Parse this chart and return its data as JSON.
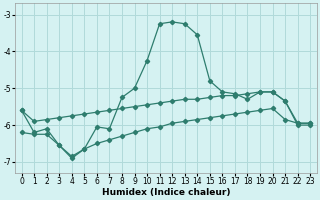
{
  "line1_x": [
    0,
    1,
    2,
    3,
    4,
    5,
    6,
    7,
    8,
    9,
    10,
    11,
    12,
    13,
    14,
    15,
    16,
    17,
    18,
    19,
    20,
    21,
    22,
    23
  ],
  "line1_y": [
    -5.6,
    -6.2,
    -6.1,
    -6.55,
    -6.9,
    -6.65,
    -6.05,
    -6.1,
    -5.25,
    -5.0,
    -4.25,
    -3.25,
    -3.2,
    -3.25,
    -3.55,
    -4.8,
    -5.1,
    -5.15,
    -5.3,
    -5.1,
    -5.1,
    -5.35,
    -6.0,
    -6.0
  ],
  "line2_x": [
    0,
    1,
    2,
    3,
    4,
    5,
    6,
    7,
    8,
    9,
    10,
    11,
    12,
    13,
    14,
    15,
    16,
    17,
    18,
    19,
    20,
    21,
    22,
    23
  ],
  "line2_y": [
    -5.6,
    -5.9,
    -5.85,
    -5.8,
    -5.75,
    -5.7,
    -5.65,
    -5.6,
    -5.55,
    -5.5,
    -5.45,
    -5.4,
    -5.35,
    -5.3,
    -5.3,
    -5.25,
    -5.2,
    -5.2,
    -5.15,
    -5.1,
    -5.1,
    -5.35,
    -5.95,
    -5.95
  ],
  "line3_x": [
    0,
    1,
    2,
    3,
    4,
    5,
    6,
    7,
    8,
    9,
    10,
    11,
    12,
    13,
    14,
    15,
    16,
    17,
    18,
    19,
    20,
    21,
    22,
    23
  ],
  "line3_y": [
    -6.2,
    -6.25,
    -6.25,
    -6.55,
    -6.85,
    -6.65,
    -6.5,
    -6.4,
    -6.3,
    -6.2,
    -6.1,
    -6.05,
    -5.95,
    -5.9,
    -5.85,
    -5.8,
    -5.75,
    -5.7,
    -5.65,
    -5.6,
    -5.55,
    -5.85,
    -5.95,
    -5.95
  ],
  "color": "#2E7D6E",
  "bg_color": "#D5F2F2",
  "grid_color": "#B0DADA",
  "xlabel": "Humidex (Indice chaleur)",
  "ylim": [
    -7.3,
    -2.7
  ],
  "xlim": [
    -0.5,
    23.5
  ],
  "yticks": [
    -7,
    -6,
    -5,
    -4,
    -3
  ],
  "xticks": [
    0,
    1,
    2,
    3,
    4,
    5,
    6,
    7,
    8,
    9,
    10,
    11,
    12,
    13,
    14,
    15,
    16,
    17,
    18,
    19,
    20,
    21,
    22,
    23
  ]
}
